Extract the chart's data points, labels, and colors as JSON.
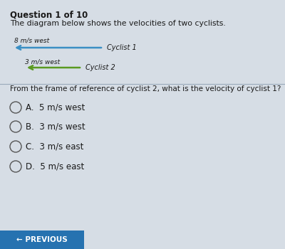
{
  "title": "Question 1 of 10",
  "subtitle": "The diagram below shows the velocities of two cyclists.",
  "cyclist1_label": "8 m/s west",
  "cyclist1_name": "Cyclist 1",
  "cyclist2_label": "3 m/s west",
  "cyclist2_name": "Cyclist 2",
  "question": "From the frame of reference of cyclist 2, what is the velocity of cyclist 1?",
  "options": [
    "A.  5 m/s west",
    "B.  3 m/s west",
    "C.  3 m/s east",
    "D.  5 m/s east"
  ],
  "bg_color": "#d6dde5",
  "arrow1_color": "#3a8fc4",
  "arrow2_color": "#5a9a20",
  "text_color": "#1a1a1a",
  "button_color": "#2672b0",
  "button_text": "← PREVIOUS",
  "title_fontsize": 8.5,
  "subtitle_fontsize": 7.8,
  "label_fontsize": 6.5,
  "name_fontsize": 7.0,
  "question_fontsize": 7.5,
  "option_fontsize": 8.5
}
